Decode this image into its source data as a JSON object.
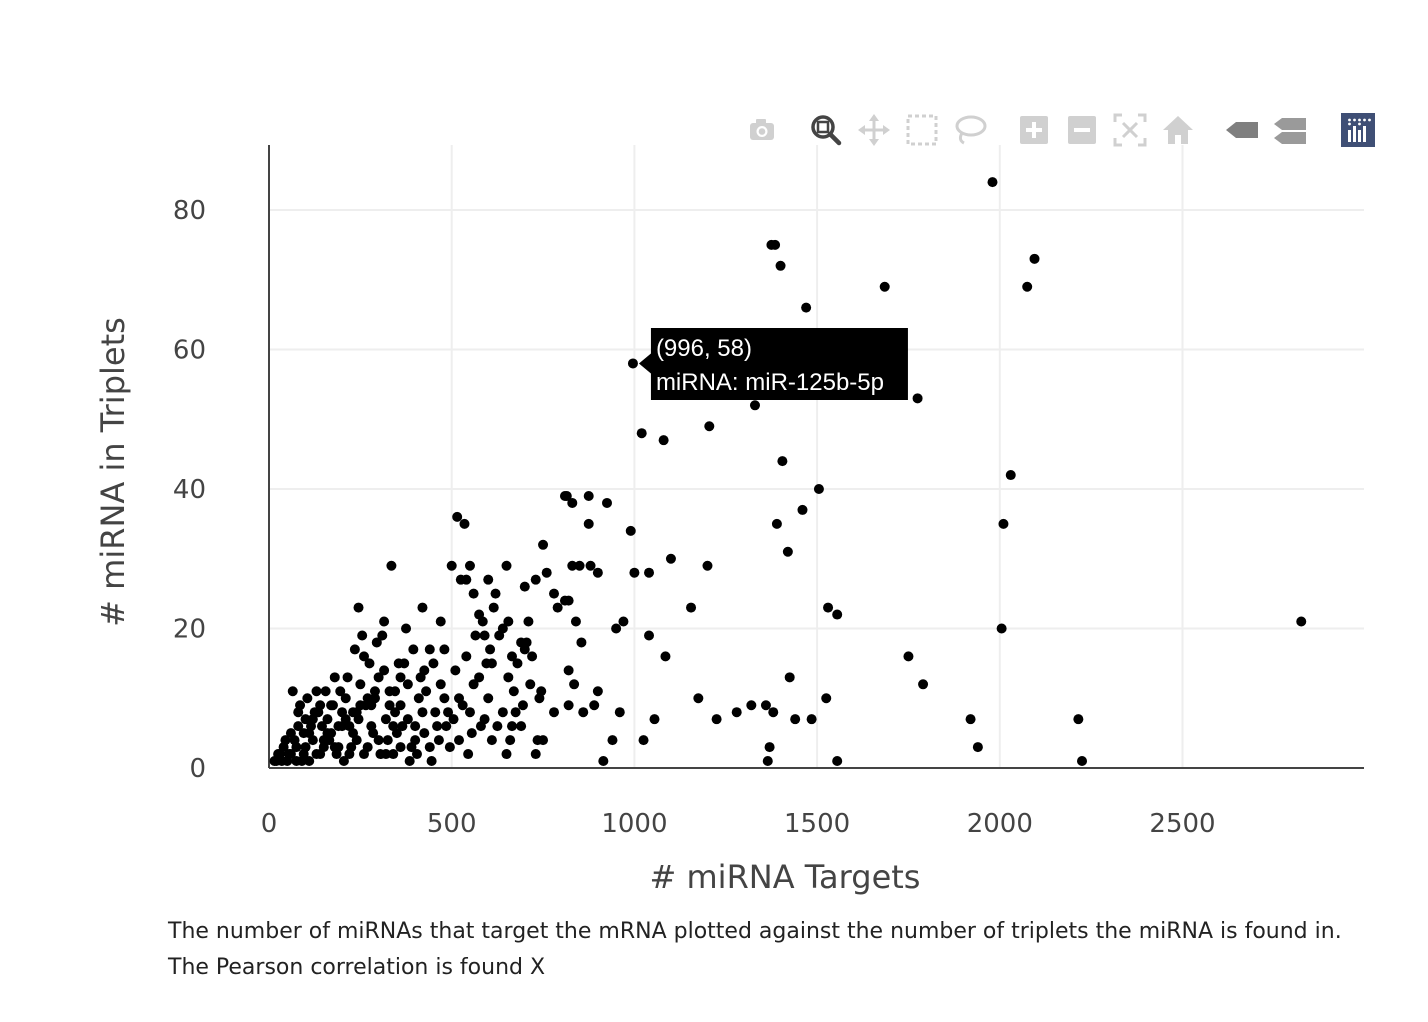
{
  "modebar": {
    "buttons": [
      {
        "icon": "camera-icon",
        "title": "Download plot as a png"
      },
      {
        "icon": "zoom-icon",
        "title": "Zoom"
      },
      {
        "icon": "pan-icon",
        "title": "Pan"
      },
      {
        "icon": "box-select-icon",
        "title": "Box Select"
      },
      {
        "icon": "lasso-select-icon",
        "title": "Lasso Select"
      },
      {
        "icon": "zoom-in-icon",
        "title": "Zoom in"
      },
      {
        "icon": "zoom-out-icon",
        "title": "Zoom out"
      },
      {
        "icon": "autoscale-icon",
        "title": "Autoscale"
      },
      {
        "icon": "reset-axes-icon",
        "title": "Reset axes"
      },
      {
        "icon": "spike-lines-icon",
        "title": "Show closest data on hover"
      },
      {
        "icon": "compare-data-icon",
        "title": "Compare data on hover"
      },
      {
        "icon": "plotly-logo-icon",
        "title": "Produced with Plotly"
      }
    ],
    "active_color": "#444444",
    "inactive_color": "#d0d0d0",
    "logo_color": "#3f4f75"
  },
  "chart_data": {
    "type": "scatter",
    "title": "",
    "xlabel": "# miRNA Targets",
    "ylabel": "# miRNA in Triplets",
    "xlim": [
      0,
      3000
    ],
    "ylim": [
      0,
      90
    ],
    "xticks": [
      0,
      500,
      1000,
      1500,
      2000,
      2500
    ],
    "yticks": [
      0,
      20,
      40,
      60,
      80
    ],
    "grid": true,
    "marker_color": "#000000",
    "points": [
      [
        1980,
        84
      ],
      [
        1375,
        75
      ],
      [
        1385,
        75
      ],
      [
        1400,
        72
      ],
      [
        2095,
        73
      ],
      [
        1685,
        69
      ],
      [
        2075,
        69
      ],
      [
        1470,
        66
      ],
      [
        996,
        58
      ],
      [
        1775,
        53
      ],
      [
        1330,
        52
      ],
      [
        1020,
        48
      ],
      [
        1080,
        47
      ],
      [
        1205,
        49
      ],
      [
        1405,
        44
      ],
      [
        2030,
        42
      ],
      [
        1505,
        40
      ],
      [
        515,
        36
      ],
      [
        535,
        35
      ],
      [
        815,
        39
      ],
      [
        830,
        38
      ],
      [
        875,
        39
      ],
      [
        925,
        38
      ],
      [
        1460,
        37
      ],
      [
        1390,
        35
      ],
      [
        2010,
        35
      ],
      [
        1420,
        31
      ],
      [
        990,
        34
      ],
      [
        875,
        35
      ],
      [
        750,
        32
      ],
      [
        500,
        29
      ],
      [
        525,
        27
      ],
      [
        550,
        29
      ],
      [
        575,
        22
      ],
      [
        600,
        27
      ],
      [
        620,
        25
      ],
      [
        650,
        29
      ],
      [
        700,
        26
      ],
      [
        730,
        27
      ],
      [
        760,
        28
      ],
      [
        790,
        23
      ],
      [
        810,
        24
      ],
      [
        830,
        29
      ],
      [
        850,
        29
      ],
      [
        880,
        29
      ],
      [
        900,
        28
      ],
      [
        950,
        20
      ],
      [
        970,
        21
      ],
      [
        1000,
        28
      ],
      [
        1040,
        28
      ],
      [
        1100,
        30
      ],
      [
        1200,
        29
      ],
      [
        1155,
        23
      ],
      [
        1530,
        23
      ],
      [
        1555,
        22
      ],
      [
        2005,
        20
      ],
      [
        2825,
        21
      ],
      [
        1040,
        19
      ],
      [
        1085,
        16
      ],
      [
        1750,
        16
      ],
      [
        1790,
        12
      ],
      [
        1425,
        13
      ],
      [
        1175,
        10
      ],
      [
        1320,
        9
      ],
      [
        1280,
        8
      ],
      [
        1225,
        7
      ],
      [
        1055,
        7
      ],
      [
        1025,
        4
      ],
      [
        1360,
        9
      ],
      [
        1380,
        8
      ],
      [
        1440,
        7
      ],
      [
        1485,
        7
      ],
      [
        1525,
        10
      ],
      [
        1920,
        7
      ],
      [
        1940,
        3
      ],
      [
        2215,
        7
      ],
      [
        2225,
        1
      ],
      [
        1555,
        1
      ],
      [
        1365,
        1
      ],
      [
        1370,
        3
      ],
      [
        915,
        1
      ],
      [
        940,
        4
      ],
      [
        960,
        8
      ],
      [
        900,
        11
      ],
      [
        890,
        9
      ],
      [
        860,
        8
      ],
      [
        835,
        12
      ],
      [
        820,
        14
      ],
      [
        840,
        21
      ],
      [
        855,
        18
      ],
      [
        820,
        9
      ],
      [
        780,
        8
      ],
      [
        740,
        10
      ],
      [
        735,
        4
      ],
      [
        730,
        2
      ],
      [
        750,
        4
      ],
      [
        700,
        17
      ],
      [
        710,
        21
      ],
      [
        680,
        15
      ],
      [
        670,
        11
      ],
      [
        660,
        4
      ],
      [
        650,
        2
      ],
      [
        625,
        6
      ],
      [
        600,
        10
      ],
      [
        590,
        7
      ],
      [
        575,
        13
      ],
      [
        560,
        12
      ],
      [
        555,
        5
      ],
      [
        545,
        2
      ],
      [
        530,
        9
      ],
      [
        520,
        4
      ],
      [
        505,
        7
      ],
      [
        495,
        3
      ],
      [
        480,
        10
      ],
      [
        470,
        12
      ],
      [
        455,
        8
      ],
      [
        440,
        17
      ],
      [
        425,
        14
      ],
      [
        410,
        10
      ],
      [
        400,
        6
      ],
      [
        390,
        3
      ],
      [
        380,
        12
      ],
      [
        370,
        15
      ],
      [
        360,
        9
      ],
      [
        350,
        5
      ],
      [
        340,
        2
      ],
      [
        330,
        11
      ],
      [
        320,
        7
      ],
      [
        310,
        19
      ],
      [
        300,
        13
      ],
      [
        290,
        10
      ],
      [
        280,
        6
      ],
      [
        270,
        3
      ],
      [
        260,
        16
      ],
      [
        250,
        12
      ],
      [
        240,
        8
      ],
      [
        230,
        5
      ],
      [
        220,
        2
      ],
      [
        210,
        10
      ],
      [
        200,
        6
      ],
      [
        190,
        3
      ],
      [
        180,
        13
      ],
      [
        170,
        9
      ],
      [
        160,
        7
      ],
      [
        150,
        4
      ],
      [
        140,
        2
      ],
      [
        130,
        11
      ],
      [
        120,
        7
      ],
      [
        110,
        5
      ],
      [
        100,
        3
      ],
      [
        90,
        1
      ],
      [
        80,
        6
      ],
      [
        70,
        4
      ],
      [
        60,
        2
      ],
      [
        50,
        1
      ],
      [
        40,
        3
      ],
      [
        30,
        2
      ],
      [
        20,
        1
      ],
      [
        65,
        11
      ],
      [
        85,
        9
      ],
      [
        105,
        10
      ],
      [
        125,
        8
      ],
      [
        145,
        6
      ],
      [
        165,
        4
      ],
      [
        185,
        2
      ],
      [
        205,
        1
      ],
      [
        225,
        3
      ],
      [
        245,
        7
      ],
      [
        265,
        9
      ],
      [
        285,
        5
      ],
      [
        305,
        2
      ],
      [
        325,
        4
      ],
      [
        345,
        8
      ],
      [
        365,
        6
      ],
      [
        385,
        1
      ],
      [
        405,
        2
      ],
      [
        425,
        5
      ],
      [
        445,
        1
      ],
      [
        465,
        4
      ],
      [
        485,
        6
      ],
      [
        510,
        14
      ],
      [
        540,
        16
      ],
      [
        565,
        19
      ],
      [
        585,
        21
      ],
      [
        605,
        17
      ],
      [
        630,
        19
      ],
      [
        655,
        13
      ],
      [
        675,
        8
      ],
      [
        690,
        6
      ],
      [
        715,
        12
      ],
      [
        450,
        15
      ],
      [
        430,
        11
      ],
      [
        415,
        13
      ],
      [
        395,
        17
      ],
      [
        375,
        20
      ],
      [
        355,
        15
      ],
      [
        335,
        29
      ],
      [
        315,
        21
      ],
      [
        295,
        18
      ],
      [
        275,
        15
      ],
      [
        255,
        19
      ],
      [
        245,
        23
      ],
      [
        235,
        17
      ],
      [
        215,
        13
      ],
      [
        195,
        11
      ],
      [
        175,
        9
      ],
      [
        155,
        11
      ],
      [
        135,
        8
      ],
      [
        115,
        6
      ],
      [
        95,
        5
      ],
      [
        75,
        3
      ],
      [
        55,
        2
      ],
      [
        45,
        4
      ],
      [
        35,
        1
      ],
      [
        25,
        2
      ],
      [
        15,
        1
      ],
      [
        60,
        5
      ],
      [
        80,
        8
      ],
      [
        100,
        7
      ],
      [
        120,
        4
      ],
      [
        140,
        9
      ],
      [
        160,
        5
      ],
      [
        180,
        3
      ],
      [
        200,
        8
      ],
      [
        220,
        6
      ],
      [
        240,
        4
      ],
      [
        260,
        2
      ],
      [
        280,
        9
      ],
      [
        300,
        4
      ],
      [
        320,
        2
      ],
      [
        340,
        6
      ],
      [
        360,
        3
      ],
      [
        380,
        7
      ],
      [
        400,
        4
      ],
      [
        420,
        8
      ],
      [
        440,
        3
      ],
      [
        460,
        6
      ],
      [
        490,
        8
      ],
      [
        520,
        10
      ],
      [
        550,
        8
      ],
      [
        580,
        6
      ],
      [
        610,
        4
      ],
      [
        640,
        8
      ],
      [
        665,
        6
      ],
      [
        695,
        9
      ],
      [
        720,
        16
      ],
      [
        745,
        11
      ],
      [
        665,
        16
      ],
      [
        610,
        15
      ],
      [
        595,
        15
      ],
      [
        560,
        25
      ],
      [
        540,
        27
      ],
      [
        615,
        23
      ],
      [
        640,
        20
      ],
      [
        655,
        21
      ],
      [
        690,
        18
      ],
      [
        705,
        18
      ],
      [
        820,
        24
      ],
      [
        810,
        39
      ],
      [
        780,
        25
      ],
      [
        590,
        19
      ],
      [
        470,
        21
      ],
      [
        480,
        17
      ],
      [
        420,
        23
      ],
      [
        360,
        13
      ],
      [
        345,
        11
      ],
      [
        330,
        9
      ],
      [
        315,
        14
      ],
      [
        290,
        11
      ],
      [
        270,
        10
      ],
      [
        250,
        9
      ],
      [
        230,
        8
      ],
      [
        210,
        7
      ],
      [
        190,
        6
      ],
      [
        170,
        5
      ],
      [
        150,
        3
      ],
      [
        130,
        2
      ],
      [
        110,
        1
      ],
      [
        95,
        2
      ],
      [
        75,
        1
      ]
    ],
    "hover": {
      "x": 996,
      "y": 58,
      "line1": "(996, 58)",
      "line2": "miRNA: miR-125b-5p"
    }
  },
  "caption": "The number of miRNAs that target the mRNA plotted against the number of triplets the miRNA is found in. The Pearson correlation is found X"
}
